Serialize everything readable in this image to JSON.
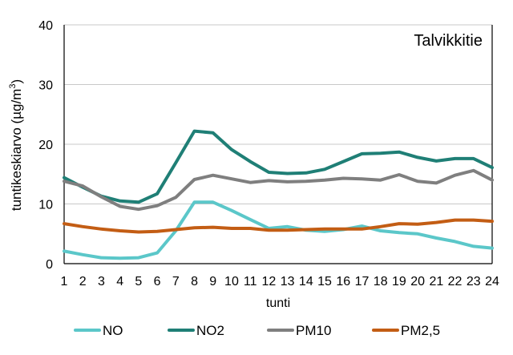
{
  "chart_data": {
    "type": "line",
    "title": "Talvikkitie",
    "xlabel": "tunti",
    "ylabel": "tuntikeskiarvo (µg/m",
    "ylabel_sup": "3",
    "ylabel_close": ")",
    "ylim": [
      0,
      40
    ],
    "yticks": [
      0,
      10,
      20,
      30,
      40
    ],
    "grid": true,
    "legend_position": "bottom",
    "x": [
      1,
      2,
      3,
      4,
      5,
      6,
      7,
      8,
      9,
      10,
      11,
      12,
      13,
      14,
      15,
      16,
      17,
      18,
      19,
      20,
      21,
      22,
      23,
      24
    ],
    "series": [
      {
        "name": "NO",
        "color": "#5bc7c9",
        "values": [
          2.1,
          1.5,
          1.0,
          0.9,
          1.0,
          1.8,
          5.5,
          10.3,
          10.3,
          8.9,
          7.4,
          5.9,
          6.2,
          5.6,
          5.4,
          5.7,
          6.3,
          5.5,
          5.2,
          5.0,
          4.3,
          3.7,
          2.9,
          2.6
        ]
      },
      {
        "name": "NO2",
        "color": "#1f7f76",
        "values": [
          14.4,
          12.8,
          11.3,
          10.5,
          10.3,
          11.7,
          16.9,
          22.2,
          21.9,
          19.1,
          17.1,
          15.3,
          15.1,
          15.2,
          15.8,
          17.1,
          18.4,
          18.5,
          18.7,
          17.8,
          17.2,
          17.6,
          17.6,
          16.1
        ]
      },
      {
        "name": "PM10",
        "color": "#7f7f7f",
        "values": [
          13.8,
          13.0,
          11.2,
          9.6,
          9.1,
          9.7,
          11.1,
          14.1,
          14.8,
          14.2,
          13.6,
          13.9,
          13.7,
          13.8,
          14.0,
          14.3,
          14.2,
          14.0,
          14.9,
          13.8,
          13.5,
          14.8,
          15.6,
          14.0
        ]
      },
      {
        "name": "PM2,5",
        "color": "#c35d14",
        "values": [
          6.7,
          6.2,
          5.8,
          5.5,
          5.3,
          5.4,
          5.7,
          6.0,
          6.1,
          5.9,
          5.9,
          5.6,
          5.6,
          5.7,
          5.8,
          5.8,
          5.8,
          6.2,
          6.7,
          6.6,
          6.9,
          7.3,
          7.3,
          7.1
        ]
      }
    ]
  }
}
